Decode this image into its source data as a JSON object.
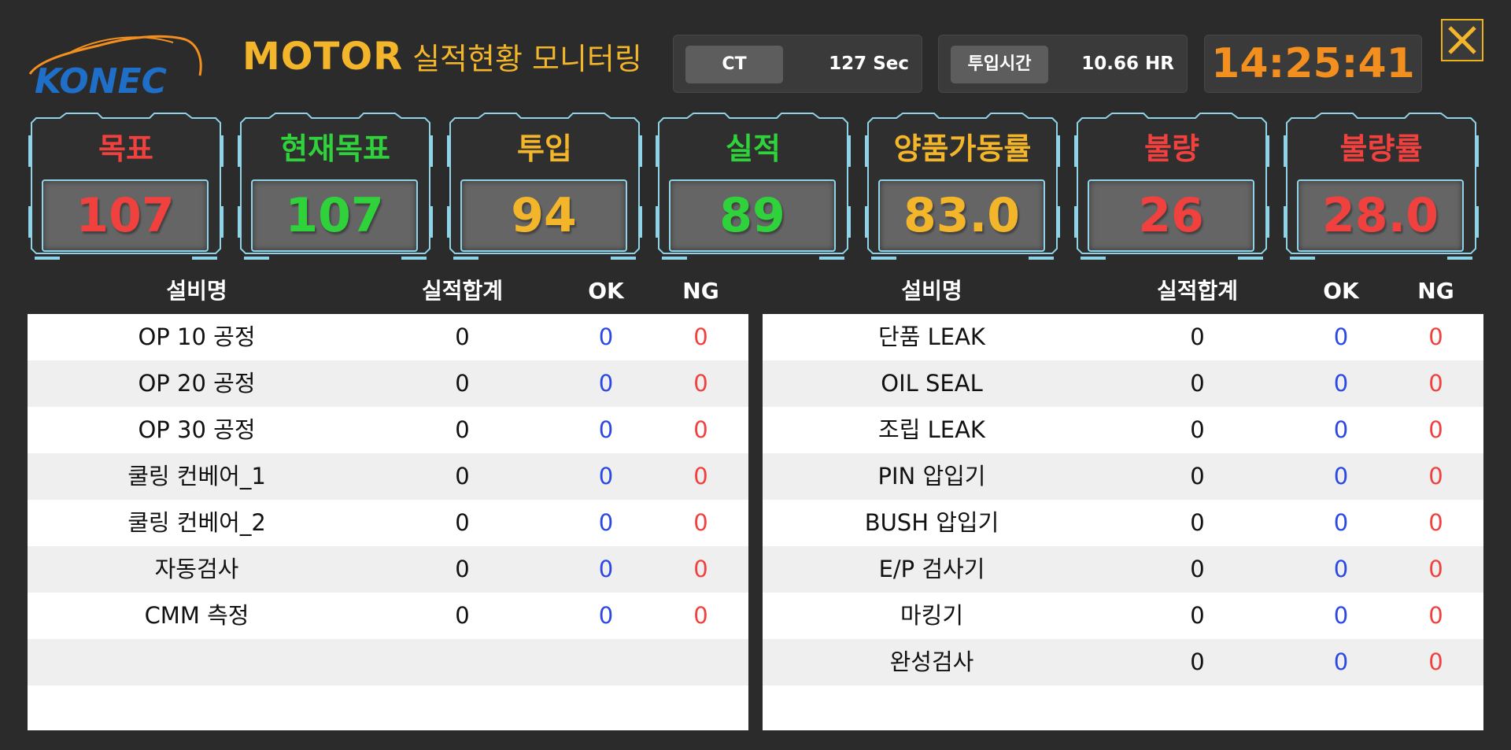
{
  "logo": {
    "text": "KONEC"
  },
  "header": {
    "title_main": "MOTOR",
    "title_sub": "실적현황 모니터링",
    "ct_label": "CT",
    "ct_value": "127 Sec",
    "input_time_label": "투입시간",
    "input_time_value": "10.66 HR",
    "clock": "14:25:41",
    "close_icon": "close-icon"
  },
  "kpis": [
    {
      "label": "목표",
      "value": "107",
      "color": "#f0413e"
    },
    {
      "label": "현재목표",
      "value": "107",
      "color": "#2fd23a"
    },
    {
      "label": "투입",
      "value": "94",
      "color": "#f3b52a"
    },
    {
      "label": "실적",
      "value": "89",
      "color": "#2fd23a"
    },
    {
      "label": "양품가동률",
      "value": "83.0",
      "color": "#f3b52a"
    },
    {
      "label": "불량",
      "value": "26",
      "color": "#f0413e"
    },
    {
      "label": "불량률",
      "value": "28.0",
      "color": "#f0413e"
    }
  ],
  "table_left": {
    "headers": [
      "설비명",
      "실적합계",
      "OK",
      "NG"
    ],
    "rows": [
      {
        "name": "OP 10 공정",
        "total": "0",
        "ok": "0",
        "ng": "0"
      },
      {
        "name": "OP 20 공정",
        "total": "0",
        "ok": "0",
        "ng": "0"
      },
      {
        "name": "OP 30 공정",
        "total": "0",
        "ok": "0",
        "ng": "0"
      },
      {
        "name": "쿨링 컨베어_1",
        "total": "0",
        "ok": "0",
        "ng": "0"
      },
      {
        "name": "쿨링 컨베어_2",
        "total": "0",
        "ok": "0",
        "ng": "0"
      },
      {
        "name": "자동검사",
        "total": "0",
        "ok": "0",
        "ng": "0"
      },
      {
        "name": "CMM 측정",
        "total": "0",
        "ok": "0",
        "ng": "0"
      }
    ]
  },
  "table_right": {
    "headers": [
      "설비명",
      "실적합계",
      "OK",
      "NG"
    ],
    "rows": [
      {
        "name": "단품 LEAK",
        "total": "0",
        "ok": "0",
        "ng": "0"
      },
      {
        "name": "OIL SEAL",
        "total": "0",
        "ok": "0",
        "ng": "0"
      },
      {
        "name": "조립 LEAK",
        "total": "0",
        "ok": "0",
        "ng": "0"
      },
      {
        "name": "PIN 압입기",
        "total": "0",
        "ok": "0",
        "ng": "0"
      },
      {
        "name": "BUSH 압입기",
        "total": "0",
        "ok": "0",
        "ng": "0"
      },
      {
        "name": "E/P 검사기",
        "total": "0",
        "ok": "0",
        "ng": "0"
      },
      {
        "name": "마킹기",
        "total": "0",
        "ok": "0",
        "ng": "0"
      },
      {
        "name": "완성검사",
        "total": "0",
        "ok": "0",
        "ng": "0"
      }
    ]
  },
  "colors": {
    "background": "#2b2b2b",
    "accent_yellow": "#f3b52a",
    "clock_orange": "#f38f1f",
    "ok_blue": "#2b47e4",
    "ng_red": "#f0413e",
    "frame_cyan": "#8fd3e9"
  }
}
